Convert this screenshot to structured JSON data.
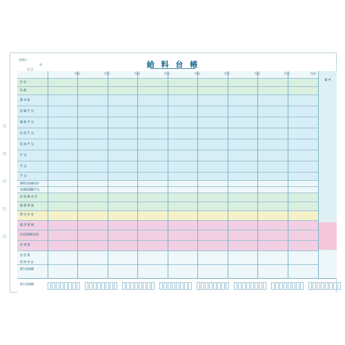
{
  "sheet": {
    "title": "給 料 台 帳",
    "topinfo": [
      "支給日",
      "年",
      "月 日"
    ],
    "remarks_label": "備 考"
  },
  "months": [
    "月分",
    "月分",
    "月分",
    "月分",
    "月分",
    "月分",
    "月分",
    "月分",
    "月分"
  ],
  "row_labels": [
    {
      "text": "氏 名"
    },
    {
      "text": "所 属"
    },
    {
      "text": "基 本 給"
    },
    {
      "text": "役 職 手 当"
    },
    {
      "text": "職 能 手 当"
    },
    {
      "text": "住 居 手 当"
    },
    {
      "text": "家 族 手 当"
    },
    {
      "text": "手 当"
    },
    {
      "text": "手 当"
    },
    {
      "text": "手 当"
    },
    {
      "text": "課税支給額合計"
    },
    {
      "text": "非課税通勤手当"
    },
    {
      "text": "支 給 額 合 計"
    },
    {
      "text": "健 康 保 険"
    },
    {
      "text": "厚 生 年 金"
    },
    {
      "text": "雇 用 保 険"
    },
    {
      "text": "社会保険料合計"
    },
    {
      "text": "所 得 税"
    },
    {
      "text": "住 民 税"
    },
    {
      "text": "控 除 合 計"
    },
    {
      "text": "差引支給額"
    }
  ],
  "footer": {
    "label": "差引支給額"
  },
  "colors": {
    "cyan_band": "#d6eef6",
    "green_band": "#d9efe0",
    "yellow_band": "#f6f1c9",
    "pink_band": "#f2cfe3",
    "white_band": "#eef7fa",
    "line": "#7fb2c6"
  }
}
